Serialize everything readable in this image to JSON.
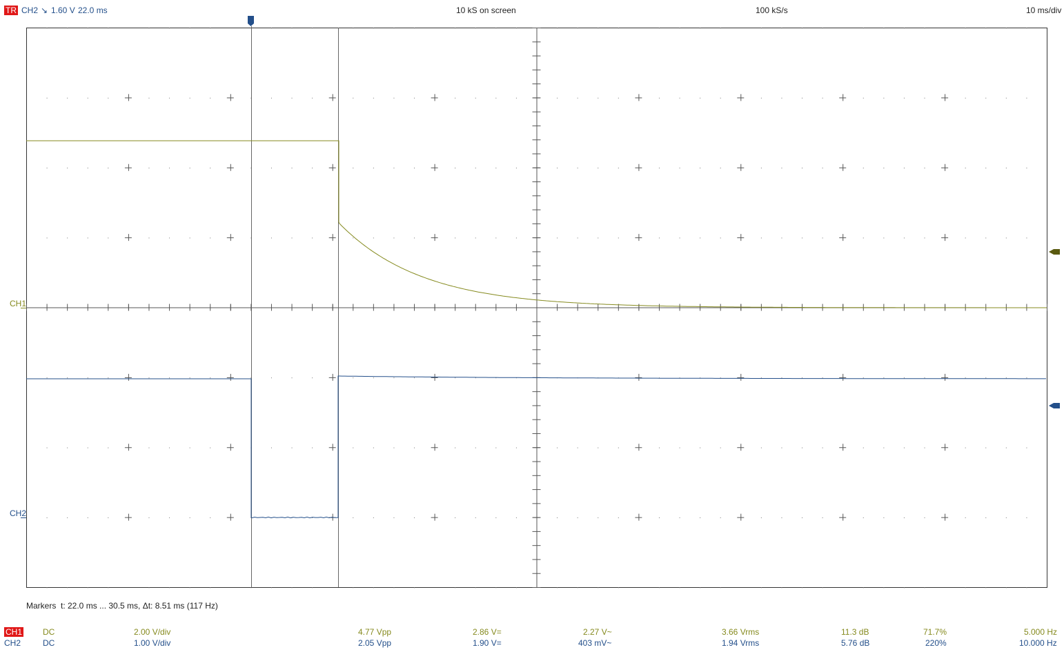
{
  "header": {
    "trigger_badge": "TR",
    "trigger_source": "CH2",
    "trigger_slope_symbol": "↘",
    "trigger_level": "1.60 V",
    "trigger_time": "22.0 ms",
    "samples_on_screen": "10 kS on screen",
    "sample_rate": "100 kS/s",
    "timebase": "10 ms/div"
  },
  "colors": {
    "ch1": "#858a1e",
    "ch2": "#234f8a",
    "badge": "#e01818",
    "grid": "#555555",
    "cursor": "#666666"
  },
  "channels": [
    {
      "label": "CH1"
    },
    {
      "label": "CH2"
    }
  ],
  "markers": {
    "label": "Markers",
    "text": "t: 22.0 ms ... 30.5 ms,  Δt: 8.51 ms (117 Hz)"
  },
  "measurements": [
    {
      "channel": "CH1",
      "coupling": "DC",
      "vdiv": "2.00 V/div",
      "vpp": "4.77 Vpp",
      "vdc": "2.86 V=",
      "vac": "2.27 V~",
      "vrms": "3.66 Vrms",
      "db": "11.3 dB",
      "pct": "71.7%",
      "freq": "5.000 Hz"
    },
    {
      "channel": "CH2",
      "coupling": "DC",
      "vdiv": "1.00 V/div",
      "vpp": "2.05 Vpp",
      "vdc": "1.90 V=",
      "vac": "403 mV~",
      "vrms": "1.94 Vrms",
      "db": "5.76 dB",
      "pct": "220%",
      "freq": "10.000 Hz"
    }
  ]
}
